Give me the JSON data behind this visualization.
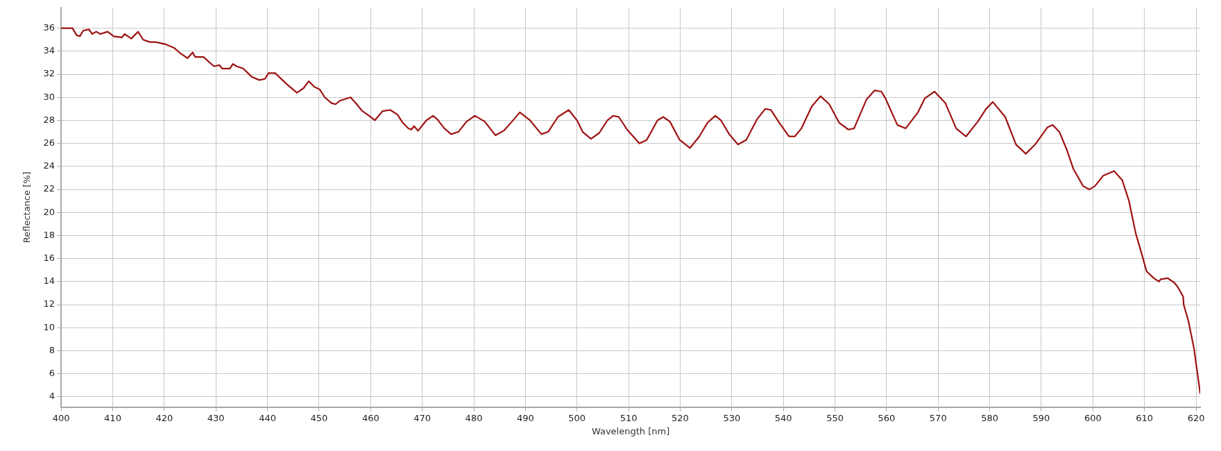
{
  "chart_data": {
    "type": "line",
    "xlabel": "Wavelength [nm]",
    "ylabel": "Reflectance [%]",
    "xlim": [
      400,
      620.8
    ],
    "xticks": [
      400,
      410,
      420,
      430,
      440,
      450,
      460,
      470,
      480,
      490,
      500,
      510,
      520,
      530,
      540,
      550,
      560,
      570,
      580,
      590,
      600,
      610,
      620
    ],
    "ylim": [
      3.1,
      37.8
    ],
    "yticks": [
      4,
      6,
      8,
      10,
      12,
      14,
      16,
      18,
      20,
      22,
      24,
      26,
      28,
      30,
      32,
      34,
      36
    ],
    "grid": true,
    "legend": false,
    "marker": "none",
    "line_style": "solid",
    "series": [
      {
        "color": "#9e1111",
        "x": [
          400,
          402.2,
          403,
          403.6,
          404.3,
          405.4,
          406,
          406.8,
          407.6,
          409,
          410.2,
          411.8,
          412.3,
          413.6,
          414.9,
          415.9,
          417.2,
          418.3,
          420.3,
          421.9,
          422.9,
          424.5,
          425.5,
          426,
          427.6,
          429.6,
          430.7,
          431.2,
          432.7,
          433.3,
          434,
          435.3,
          436.9,
          438.4,
          439.5,
          440.2,
          441.5,
          443.6,
          445.7,
          447,
          448,
          449.1,
          450.1,
          451.1,
          452.4,
          453.2,
          454,
          456.1,
          457.1,
          458.4,
          459.7,
          460.8,
          462.3,
          463.8,
          465.2,
          466.2,
          467.3,
          467.9,
          468.4,
          469.2,
          470.8,
          472.1,
          472.9,
          474.3,
          475.6,
          477,
          478.6,
          480.2,
          482.1,
          484.2,
          485.8,
          487.4,
          488.9,
          490.9,
          493.1,
          494.4,
          496.3,
          498.4,
          500,
          501.1,
          502.7,
          504.3,
          505.9,
          507,
          508.1,
          509.7,
          512.1,
          513.5,
          515.6,
          516.7,
          518,
          519.9,
          521.9,
          523.7,
          525.3,
          526.8,
          527.9,
          529.5,
          531.2,
          532.8,
          534.9,
          536.5,
          537.6,
          539.2,
          541.1,
          542.2,
          543.5,
          545.5,
          547.2,
          548.9,
          550.8,
          552.6,
          553.7,
          556.1,
          557.7,
          559,
          559.8,
          562.1,
          563.7,
          566.1,
          567.4,
          569.3,
          571.4,
          573.5,
          575.4,
          577.7,
          579.3,
          580.6,
          583,
          585.1,
          587,
          588.8,
          591.2,
          592.2,
          593.5,
          594.9,
          596.2,
          598.1,
          599.3,
          600.4,
          602,
          604.1,
          605.7,
          607,
          608.3,
          609.6,
          610.4,
          611.8,
          612.8,
          613.1,
          614.5,
          615.8,
          616.5,
          617.5,
          617.6,
          618.5,
          619.6,
          620.8
        ],
        "values": [
          36.0,
          36.0,
          35.4,
          35.3,
          35.8,
          35.9,
          35.5,
          35.7,
          35.5,
          35.7,
          35.3,
          35.2,
          35.5,
          35.1,
          35.7,
          35.0,
          34.8,
          34.8,
          34.6,
          34.3,
          33.9,
          33.4,
          33.9,
          33.5,
          33.5,
          32.7,
          32.8,
          32.5,
          32.5,
          32.9,
          32.7,
          32.5,
          31.8,
          31.5,
          31.6,
          32.1,
          32.1,
          31.2,
          30.4,
          30.8,
          31.4,
          30.9,
          30.7,
          30.0,
          29.5,
          29.4,
          29.7,
          30.0,
          29.5,
          28.8,
          28.4,
          28.0,
          28.8,
          28.9,
          28.5,
          27.8,
          27.3,
          27.2,
          27.5,
          27.1,
          28.0,
          28.4,
          28.1,
          27.3,
          26.8,
          27.0,
          27.9,
          28.4,
          27.9,
          26.7,
          27.1,
          27.9,
          28.7,
          28.0,
          26.8,
          27.0,
          28.3,
          28.9,
          28.0,
          27.0,
          26.4,
          26.9,
          28.0,
          28.4,
          28.3,
          27.2,
          26.0,
          26.3,
          28.0,
          28.3,
          27.9,
          26.3,
          25.6,
          26.6,
          27.8,
          28.4,
          28.0,
          26.8,
          25.9,
          26.3,
          28.1,
          29.0,
          28.9,
          27.8,
          26.6,
          26.6,
          27.3,
          29.2,
          30.1,
          29.4,
          27.8,
          27.2,
          27.3,
          29.8,
          30.6,
          30.5,
          29.9,
          27.6,
          27.3,
          28.7,
          29.9,
          30.5,
          29.5,
          27.3,
          26.6,
          27.9,
          29.0,
          29.6,
          28.3,
          25.9,
          25.1,
          25.9,
          27.4,
          27.6,
          27.0,
          25.5,
          23.8,
          22.3,
          22.0,
          22.3,
          23.2,
          23.6,
          22.8,
          21.0,
          18.2,
          16.2,
          14.9,
          14.3,
          14.0,
          14.2,
          14.3,
          13.9,
          13.5,
          12.7,
          12.0,
          10.6,
          8.2,
          4.3
        ]
      }
    ]
  }
}
